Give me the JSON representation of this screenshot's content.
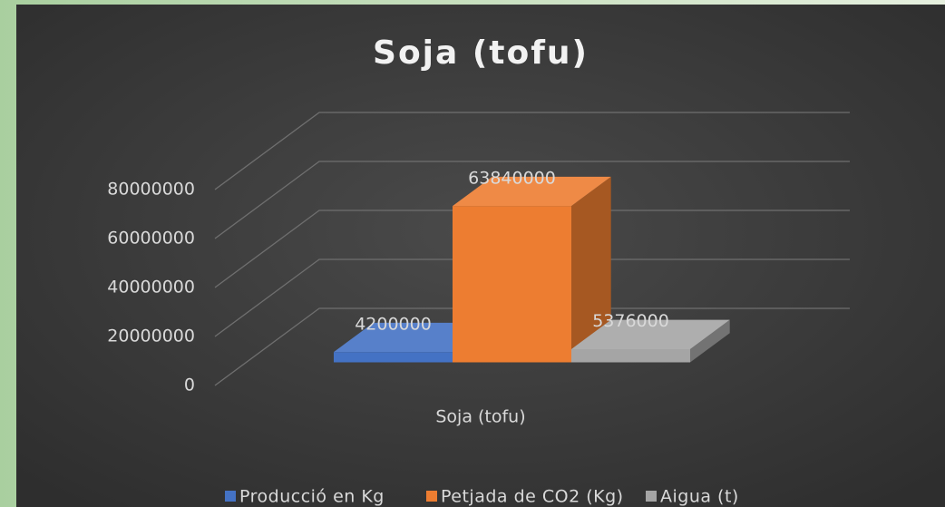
{
  "chart_data": {
    "type": "bar3d",
    "title": "Soja (tofu)",
    "categories": [
      "Soja (tofu)"
    ],
    "series": [
      {
        "name": "Producció en Kg",
        "color": "#4472c4",
        "values": [
          4200000
        ]
      },
      {
        "name": "Petjada de CO2 (Kg)",
        "color": "#ed7d31",
        "values": [
          63840000
        ]
      },
      {
        "name": "Aigua (t)",
        "color": "#a5a5a5",
        "values": [
          5376000
        ]
      }
    ],
    "ylim": [
      0,
      80000000
    ],
    "yticks": [
      0,
      20000000,
      40000000,
      60000000,
      80000000
    ],
    "grid": true,
    "legend": "bottom",
    "data_labels": true
  }
}
